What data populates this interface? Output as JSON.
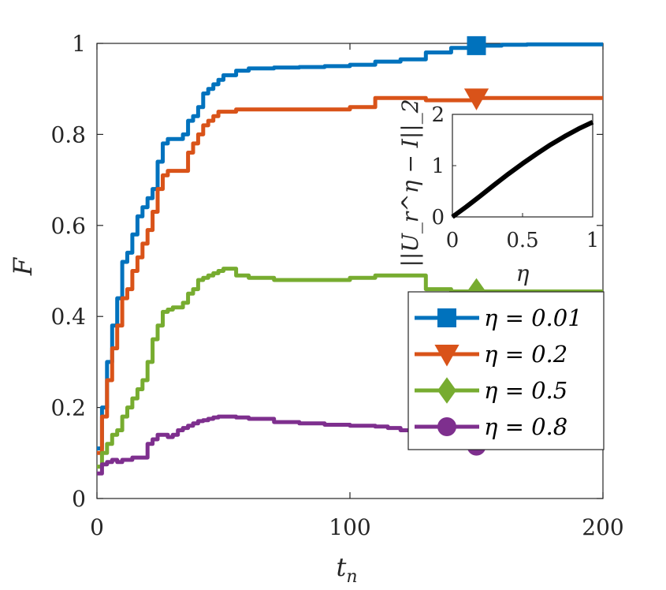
{
  "chart_data": [
    {
      "type": "line",
      "title": "",
      "xlabel": "t_n",
      "ylabel": "F",
      "xlim": [
        0,
        200
      ],
      "ylim": [
        0,
        1
      ],
      "xticks": [
        0,
        100,
        200
      ],
      "yticks": [
        0,
        0.2,
        0.4,
        0.6,
        0.8,
        1
      ],
      "xtick_labels": [
        "0",
        "100",
        "200"
      ],
      "ytick_labels": [
        "0",
        "0.2",
        "0.4",
        "0.6",
        "0.8",
        "1"
      ],
      "grid": false,
      "legend_position": "lower-right",
      "series": [
        {
          "name": "η = 0.01",
          "color": "#0072BD",
          "marker": "square",
          "marker_x": 150,
          "x": [
            0,
            2,
            4,
            6,
            8,
            10,
            12,
            14,
            16,
            18,
            20,
            22,
            24,
            26,
            28,
            30,
            32,
            34,
            36,
            38,
            40,
            42,
            44,
            46,
            48,
            50,
            55,
            60,
            70,
            80,
            90,
            100,
            110,
            120,
            130,
            140,
            150,
            160,
            170,
            180,
            190,
            200
          ],
          "values": [
            0.11,
            0.2,
            0.3,
            0.38,
            0.44,
            0.52,
            0.54,
            0.58,
            0.62,
            0.64,
            0.66,
            0.68,
            0.74,
            0.78,
            0.79,
            0.79,
            0.79,
            0.8,
            0.83,
            0.84,
            0.86,
            0.89,
            0.9,
            0.91,
            0.92,
            0.93,
            0.94,
            0.945,
            0.947,
            0.948,
            0.95,
            0.953,
            0.96,
            0.965,
            0.98,
            0.99,
            0.995,
            0.997,
            0.998,
            0.998,
            0.998,
            0.998
          ]
        },
        {
          "name": "η = 0.2",
          "color": "#D95319",
          "marker": "triangle-down",
          "marker_x": 150,
          "x": [
            0,
            2,
            4,
            6,
            8,
            10,
            12,
            14,
            16,
            18,
            20,
            22,
            24,
            26,
            28,
            30,
            32,
            34,
            36,
            38,
            40,
            42,
            44,
            46,
            48,
            50,
            55,
            60,
            70,
            80,
            90,
            100,
            110,
            120,
            130,
            140,
            150,
            160,
            170,
            180,
            190,
            200
          ],
          "values": [
            0.1,
            0.18,
            0.26,
            0.33,
            0.38,
            0.44,
            0.46,
            0.5,
            0.53,
            0.56,
            0.59,
            0.63,
            0.68,
            0.71,
            0.72,
            0.72,
            0.72,
            0.72,
            0.76,
            0.78,
            0.8,
            0.82,
            0.83,
            0.84,
            0.85,
            0.85,
            0.855,
            0.855,
            0.855,
            0.855,
            0.855,
            0.86,
            0.88,
            0.88,
            0.875,
            0.875,
            0.88,
            0.88,
            0.88,
            0.88,
            0.88,
            0.88
          ]
        },
        {
          "name": "η = 0.5",
          "color": "#77AC30",
          "marker": "diamond",
          "marker_x": 150,
          "x": [
            0,
            2,
            4,
            6,
            8,
            10,
            12,
            14,
            16,
            18,
            20,
            22,
            24,
            26,
            28,
            30,
            32,
            34,
            36,
            38,
            40,
            42,
            44,
            46,
            48,
            50,
            55,
            60,
            70,
            80,
            90,
            100,
            110,
            115,
            120,
            130,
            140,
            150,
            160,
            170,
            180,
            190,
            200
          ],
          "values": [
            0.07,
            0.1,
            0.12,
            0.14,
            0.15,
            0.18,
            0.2,
            0.22,
            0.24,
            0.26,
            0.3,
            0.35,
            0.38,
            0.41,
            0.415,
            0.42,
            0.42,
            0.43,
            0.45,
            0.46,
            0.48,
            0.485,
            0.49,
            0.495,
            0.5,
            0.505,
            0.49,
            0.485,
            0.48,
            0.48,
            0.48,
            0.485,
            0.49,
            0.49,
            0.49,
            0.46,
            0.455,
            0.455,
            0.455,
            0.455,
            0.455,
            0.455,
            0.455
          ]
        },
        {
          "name": "η = 0.8",
          "color": "#7E2F8E",
          "marker": "circle",
          "marker_x": 150,
          "x": [
            0,
            2,
            4,
            6,
            8,
            10,
            12,
            14,
            16,
            18,
            20,
            22,
            24,
            26,
            28,
            30,
            32,
            34,
            36,
            38,
            40,
            42,
            44,
            46,
            48,
            50,
            55,
            60,
            70,
            80,
            90,
            100,
            110,
            115,
            120,
            130,
            140,
            150,
            160,
            170,
            180,
            190,
            200
          ],
          "values": [
            0.055,
            0.075,
            0.08,
            0.085,
            0.08,
            0.085,
            0.085,
            0.09,
            0.09,
            0.09,
            0.12,
            0.13,
            0.14,
            0.14,
            0.135,
            0.14,
            0.15,
            0.155,
            0.16,
            0.165,
            0.17,
            0.172,
            0.175,
            0.178,
            0.18,
            0.18,
            0.178,
            0.175,
            0.168,
            0.165,
            0.162,
            0.16,
            0.158,
            0.155,
            0.15,
            0.12,
            0.115,
            0.115,
            0.115,
            0.115,
            0.115,
            0.115,
            0.115
          ]
        }
      ]
    },
    {
      "type": "line",
      "title": "",
      "xlabel": "η",
      "ylabel": "||U_r^η − I||_2",
      "xlim": [
        0,
        1
      ],
      "ylim": [
        0,
        2
      ],
      "xticks": [
        0,
        0.5,
        1
      ],
      "yticks": [
        0,
        1,
        2
      ],
      "xtick_labels": [
        "0",
        "0.5",
        "1"
      ],
      "ytick_labels": [
        "0",
        "1",
        "2"
      ],
      "grid": false,
      "placement": "inset-top-right",
      "series": [
        {
          "name": "norm",
          "color": "#000000",
          "x": [
            0,
            0.1,
            0.2,
            0.3,
            0.4,
            0.5,
            0.6,
            0.7,
            0.8,
            0.9,
            1.0
          ],
          "values": [
            0,
            0.2,
            0.41,
            0.63,
            0.84,
            1.04,
            1.23,
            1.41,
            1.57,
            1.72,
            1.85
          ]
        }
      ]
    }
  ]
}
